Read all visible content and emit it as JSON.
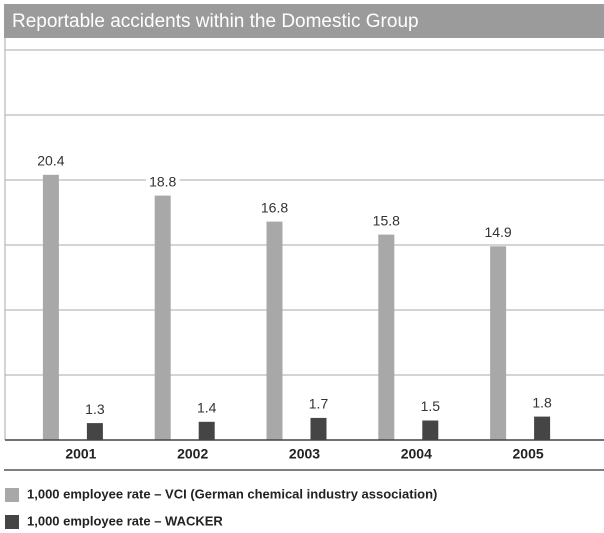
{
  "chart_data": {
    "type": "bar",
    "title": "Reportable accidents within the Domestic Group",
    "categories": [
      "2001",
      "2002",
      "2003",
      "2004",
      "2005"
    ],
    "series": [
      {
        "name": "1,000 employee rate – VCI (German chemical industry association)",
        "color": "#a8a8a8",
        "values": [
          20.4,
          18.8,
          16.8,
          15.8,
          14.9
        ]
      },
      {
        "name": "1,000 employee rate – WACKER",
        "color": "#454545",
        "values": [
          1.3,
          1.4,
          1.7,
          1.5,
          1.8
        ]
      }
    ],
    "ylim": [
      0,
      30
    ],
    "yticks": [
      0,
      5,
      10,
      15,
      20,
      25,
      30
    ],
    "grid": true
  }
}
